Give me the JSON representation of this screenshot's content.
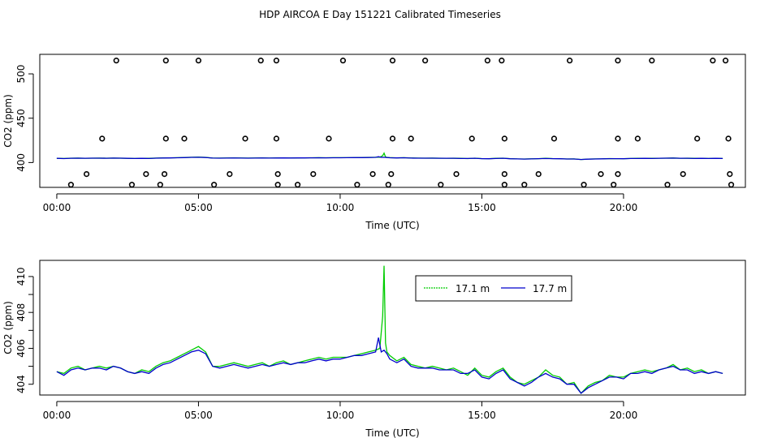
{
  "title": "HDP AIRCOA E  Day 151221  Calibrated Timeseries",
  "colors": {
    "green": "#00cc00",
    "blue": "#0000cc",
    "black": "#000000"
  },
  "chart_data": [
    {
      "type": "scatter",
      "xlabel": "Time (UTC)",
      "ylabel": "CO2 (ppm)",
      "xlim": [
        -0.6,
        24.3
      ],
      "ylim": [
        372,
        522
      ],
      "x_ticks": [
        0,
        5,
        10,
        15,
        20
      ],
      "x_tick_labels": [
        "00:00",
        "05:00",
        "10:00",
        "15:00",
        "20:00"
      ],
      "y_ticks": [
        400,
        450,
        500
      ],
      "y_tick_labels": [
        "400",
        "450",
        "500"
      ],
      "calibration_points": [
        [
          0.5,
          375
        ],
        [
          1.05,
          387
        ],
        [
          1.6,
          427
        ],
        [
          2.1,
          515
        ],
        [
          2.65,
          375
        ],
        [
          3.15,
          387
        ],
        [
          3.65,
          375
        ],
        [
          3.8,
          387
        ],
        [
          3.85,
          427
        ],
        [
          3.85,
          515
        ],
        [
          4.5,
          427
        ],
        [
          5.0,
          515
        ],
        [
          5.55,
          375
        ],
        [
          6.1,
          387
        ],
        [
          6.65,
          427
        ],
        [
          7.2,
          515
        ],
        [
          7.75,
          515
        ],
        [
          7.75,
          427
        ],
        [
          7.8,
          387
        ],
        [
          7.8,
          375
        ],
        [
          8.5,
          375
        ],
        [
          9.05,
          387
        ],
        [
          9.6,
          427
        ],
        [
          10.1,
          515
        ],
        [
          10.6,
          375
        ],
        [
          11.15,
          387
        ],
        [
          11.7,
          375
        ],
        [
          11.8,
          387
        ],
        [
          11.85,
          427
        ],
        [
          11.85,
          515
        ],
        [
          12.5,
          427
        ],
        [
          13.0,
          515
        ],
        [
          13.55,
          375
        ],
        [
          14.1,
          387
        ],
        [
          14.65,
          427
        ],
        [
          15.2,
          515
        ],
        [
          15.7,
          515
        ],
        [
          15.8,
          427
        ],
        [
          15.8,
          387
        ],
        [
          15.8,
          375
        ],
        [
          16.5,
          375
        ],
        [
          17.0,
          387
        ],
        [
          17.55,
          427
        ],
        [
          18.1,
          515
        ],
        [
          18.6,
          375
        ],
        [
          19.2,
          387
        ],
        [
          19.65,
          375
        ],
        [
          19.8,
          387
        ],
        [
          19.8,
          427
        ],
        [
          19.8,
          515
        ],
        [
          20.5,
          427
        ],
        [
          21.0,
          515
        ],
        [
          21.55,
          375
        ],
        [
          22.1,
          387
        ],
        [
          22.6,
          427
        ],
        [
          23.15,
          515
        ],
        [
          23.6,
          515
        ],
        [
          23.7,
          427
        ],
        [
          23.75,
          387
        ],
        [
          23.8,
          375
        ]
      ],
      "series_note_baseline": 404.6
    },
    {
      "type": "line",
      "xlabel": "Time (UTC)",
      "ylabel": "CO2 (ppm)",
      "xlim": [
        -0.6,
        24.3
      ],
      "ylim": [
        403.4,
        410.9
      ],
      "x_ticks": [
        0,
        5,
        10,
        15,
        20
      ],
      "x_tick_labels": [
        "00:00",
        "05:00",
        "10:00",
        "15:00",
        "20:00"
      ],
      "y_ticks": [
        404,
        406,
        408,
        410
      ],
      "y_tick_labels": [
        "404",
        "406",
        "408",
        "410"
      ],
      "legend": "top-center",
      "series": [
        {
          "name": "17.1 m",
          "color": "#00cc00",
          "x": [
            0.0,
            0.25,
            0.5,
            0.75,
            1.0,
            1.25,
            1.5,
            1.75,
            2.0,
            2.25,
            2.5,
            2.75,
            3.0,
            3.25,
            3.5,
            3.75,
            4.0,
            4.25,
            4.5,
            4.75,
            5.0,
            5.25,
            5.5,
            5.75,
            6.0,
            6.25,
            6.5,
            6.75,
            7.0,
            7.25,
            7.5,
            7.75,
            8.0,
            8.25,
            8.5,
            8.75,
            9.0,
            9.25,
            9.5,
            9.75,
            10.0,
            10.25,
            10.5,
            10.75,
            11.0,
            11.25,
            11.4,
            11.5,
            11.55,
            11.6,
            11.65,
            11.75,
            12.0,
            12.25,
            12.5,
            12.75,
            13.0,
            13.25,
            13.5,
            13.75,
            14.0,
            14.25,
            14.5,
            14.75,
            15.0,
            15.25,
            15.5,
            15.75,
            16.0,
            16.25,
            16.5,
            16.75,
            17.0,
            17.25,
            17.5,
            17.75,
            18.0,
            18.25,
            18.5,
            18.75,
            19.0,
            19.25,
            19.5,
            19.75,
            20.0,
            20.25,
            20.5,
            20.75,
            21.0,
            21.25,
            21.5,
            21.75,
            22.0,
            22.25,
            22.5,
            22.75,
            23.0,
            23.25,
            23.5
          ],
          "y": [
            404.7,
            404.6,
            404.9,
            405.0,
            404.8,
            404.9,
            405.0,
            404.9,
            405.0,
            404.9,
            404.7,
            404.6,
            404.8,
            404.7,
            405.0,
            405.2,
            405.3,
            405.5,
            405.7,
            405.9,
            406.1,
            405.8,
            405.0,
            405.0,
            405.1,
            405.2,
            405.1,
            405.0,
            405.1,
            405.2,
            405.0,
            405.2,
            405.3,
            405.1,
            405.2,
            405.3,
            405.4,
            405.5,
            405.4,
            405.5,
            405.5,
            405.5,
            405.6,
            405.7,
            405.8,
            405.9,
            406.0,
            407.8,
            410.6,
            406.3,
            405.8,
            405.6,
            405.3,
            405.5,
            405.1,
            405.0,
            404.9,
            405.0,
            404.9,
            404.8,
            404.9,
            404.7,
            404.5,
            404.9,
            404.5,
            404.4,
            404.7,
            404.9,
            404.4,
            404.1,
            404.0,
            404.2,
            404.4,
            404.8,
            404.5,
            404.4,
            404.0,
            404.1,
            403.5,
            403.9,
            404.1,
            404.2,
            404.5,
            404.4,
            404.4,
            404.6,
            404.7,
            404.8,
            404.7,
            404.8,
            404.9,
            405.1,
            404.8,
            404.9,
            404.7,
            404.8,
            404.6,
            404.7,
            404.6
          ]
        },
        {
          "name": "17.7 m",
          "color": "#0000cc",
          "x": [
            0.0,
            0.25,
            0.5,
            0.75,
            1.0,
            1.25,
            1.5,
            1.75,
            2.0,
            2.25,
            2.5,
            2.75,
            3.0,
            3.25,
            3.5,
            3.75,
            4.0,
            4.25,
            4.5,
            4.75,
            5.0,
            5.25,
            5.5,
            5.75,
            6.0,
            6.25,
            6.5,
            6.75,
            7.0,
            7.25,
            7.5,
            7.75,
            8.0,
            8.25,
            8.5,
            8.75,
            9.0,
            9.25,
            9.5,
            9.75,
            10.0,
            10.25,
            10.5,
            10.75,
            11.0,
            11.25,
            11.35,
            11.45,
            11.55,
            11.65,
            11.75,
            12.0,
            12.25,
            12.5,
            12.75,
            13.0,
            13.25,
            13.5,
            13.75,
            14.0,
            14.25,
            14.5,
            14.75,
            15.0,
            15.25,
            15.5,
            15.75,
            16.0,
            16.25,
            16.5,
            16.75,
            17.0,
            17.25,
            17.5,
            17.75,
            18.0,
            18.25,
            18.5,
            18.75,
            19.0,
            19.25,
            19.5,
            19.75,
            20.0,
            20.25,
            20.5,
            20.75,
            21.0,
            21.25,
            21.5,
            21.75,
            22.0,
            22.25,
            22.5,
            22.75,
            23.0,
            23.25,
            23.5
          ],
          "y": [
            404.7,
            404.5,
            404.8,
            404.9,
            404.8,
            404.9,
            404.9,
            404.8,
            405.0,
            404.9,
            404.7,
            404.6,
            404.7,
            404.6,
            404.9,
            405.1,
            405.2,
            405.4,
            405.6,
            405.8,
            405.9,
            405.7,
            405.0,
            404.9,
            405.0,
            405.1,
            405.0,
            404.9,
            405.0,
            405.1,
            405.0,
            405.1,
            405.2,
            405.1,
            405.2,
            405.2,
            405.3,
            405.4,
            405.3,
            405.4,
            405.4,
            405.5,
            405.6,
            405.6,
            405.7,
            405.8,
            406.6,
            405.8,
            405.9,
            405.7,
            405.4,
            405.2,
            405.4,
            405.0,
            404.9,
            404.9,
            404.9,
            404.8,
            404.8,
            404.8,
            404.6,
            404.6,
            404.8,
            404.4,
            404.3,
            404.6,
            404.8,
            404.3,
            404.1,
            403.9,
            404.1,
            404.4,
            404.6,
            404.4,
            404.3,
            404.0,
            404.0,
            403.5,
            403.8,
            404.0,
            404.2,
            404.4,
            404.4,
            404.3,
            404.6,
            404.6,
            404.7,
            404.6,
            404.8,
            404.9,
            405.0,
            404.8,
            404.8,
            404.6,
            404.7,
            404.6,
            404.7,
            404.6
          ]
        }
      ]
    }
  ]
}
